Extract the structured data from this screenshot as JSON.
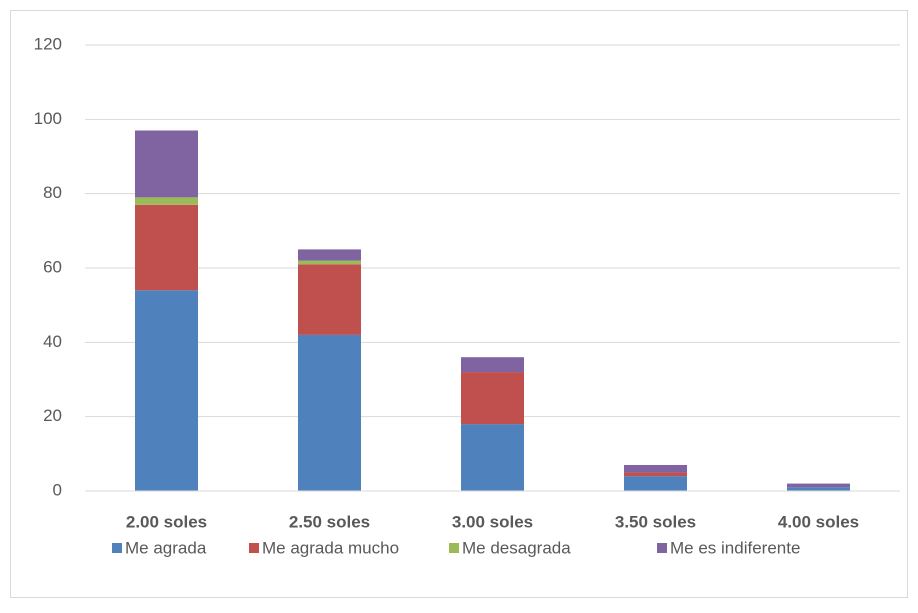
{
  "chart_data": {
    "type": "stacked_bar",
    "categories": [
      "2.00 soles",
      "2.50 soles",
      "3.00 soles",
      "3.50 soles",
      "4.00 soles"
    ],
    "series": [
      {
        "name": "Me agrada",
        "color": "#4f81bd",
        "values": [
          54,
          42,
          18,
          4,
          1
        ]
      },
      {
        "name": "Me agrada mucho",
        "color": "#c0504d",
        "values": [
          23,
          19,
          14,
          1,
          0
        ]
      },
      {
        "name": "Me desagrada",
        "color": "#9bbb59",
        "values": [
          2,
          1,
          0,
          0,
          0
        ]
      },
      {
        "name": "Me es indiferente",
        "color": "#8064a2",
        "values": [
          18,
          3,
          4,
          2,
          1
        ]
      }
    ],
    "ylim": [
      0,
      120
    ],
    "yticks": [
      0,
      20,
      40,
      60,
      80,
      100,
      120
    ],
    "grid": true,
    "legend": "bottom"
  }
}
